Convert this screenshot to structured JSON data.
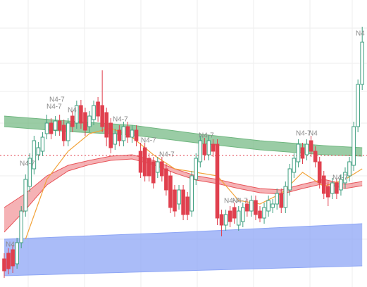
{
  "chart_data": {
    "type": "candlestick",
    "ylim": [
      0,
      408
    ],
    "grid": true,
    "up_color": "#3f9f80",
    "down_color": "#e0404e",
    "open": [
      40,
      48,
      53,
      33,
      63,
      108,
      143,
      168,
      188,
      193,
      218,
      233,
      223,
      236,
      230,
      208,
      243,
      233,
      258,
      248,
      228,
      238,
      263,
      258,
      248,
      233,
      203,
      223,
      208,
      228,
      213,
      223,
      193,
      198,
      183,
      178,
      163,
      178,
      168,
      158,
      138,
      118,
      138,
      128,
      108,
      153,
      178,
      203,
      188,
      203,
      203,
      103,
      88,
      108,
      113,
      88,
      93,
      118,
      108,
      123,
      108,
      98,
      108,
      113,
      118,
      133,
      113,
      138,
      163,
      178,
      198,
      188,
      208,
      193,
      178,
      158,
      143,
      133,
      148,
      138,
      148,
      158,
      173,
      228,
      288
    ],
    "high": [
      48,
      55,
      60,
      70,
      115,
      160,
      190,
      215,
      206,
      220,
      245,
      240,
      243,
      245,
      238,
      240,
      250,
      265,
      266,
      255,
      250,
      265,
      270,
      308,
      255,
      240,
      225,
      230,
      235,
      235,
      230,
      230,
      205,
      205,
      190,
      185,
      185,
      185,
      175,
      165,
      145,
      145,
      145,
      135,
      165,
      190,
      215,
      212,
      215,
      210,
      210,
      110,
      110,
      115,
      120,
      115,
      120,
      125,
      130,
      130,
      115,
      120,
      130,
      125,
      140,
      140,
      150,
      175,
      190,
      210,
      205,
      210,
      215,
      200,
      185,
      165,
      150,
      155,
      155,
      160,
      170,
      185,
      235,
      295,
      370
    ],
    "low": [
      13,
      18,
      20,
      26,
      55,
      100,
      135,
      160,
      180,
      186,
      210,
      210,
      215,
      215,
      200,
      200,
      220,
      225,
      225,
      215,
      220,
      230,
      235,
      220,
      200,
      190,
      195,
      200,
      200,
      205,
      205,
      200,
      155,
      150,
      150,
      140,
      155,
      150,
      130,
      105,
      100,
      110,
      95,
      95,
      100,
      145,
      170,
      180,
      180,
      185,
      88,
      72,
      80,
      85,
      90,
      80,
      85,
      100,
      100,
      95,
      92,
      90,
      100,
      105,
      110,
      105,
      105,
      130,
      155,
      170,
      175,
      180,
      185,
      170,
      140,
      125,
      115,
      125,
      125,
      130,
      140,
      150,
      165,
      220,
      280
    ],
    "close": [
      23,
      26,
      30,
      63,
      108,
      153,
      183,
      208,
      198,
      213,
      233,
      218,
      236,
      223,
      208,
      233,
      228,
      258,
      233,
      223,
      243,
      258,
      243,
      228,
      213,
      198,
      218,
      208,
      228,
      213,
      223,
      208,
      163,
      158,
      158,
      148,
      178,
      158,
      138,
      113,
      108,
      138,
      103,
      103,
      158,
      183,
      208,
      188,
      208,
      193,
      98,
      88,
      103,
      93,
      98,
      108,
      113,
      108,
      123,
      103,
      98,
      113,
      123,
      118,
      133,
      113,
      143,
      168,
      183,
      203,
      183,
      203,
      193,
      178,
      148,
      133,
      128,
      148,
      133,
      153,
      163,
      178,
      228,
      288,
      348
    ],
    "green_band": {
      "x": [
        0,
        15,
        30,
        45,
        60,
        75,
        84
      ],
      "upper": [
        243,
        236,
        230,
        218,
        208,
        201,
        198
      ],
      "lower": [
        228,
        221,
        216,
        205,
        195,
        188,
        186
      ],
      "color": "#6fb67f"
    },
    "blue_band": {
      "x": [
        0,
        42,
        84
      ],
      "upper": [
        68,
        78,
        90
      ],
      "lower": [
        16,
        23,
        30
      ],
      "color": "#8ea6f5"
    },
    "red_band": {
      "x": [
        0,
        5,
        10,
        15,
        20,
        25,
        30,
        35,
        40,
        45,
        50,
        55,
        60,
        65,
        70,
        75,
        80,
        84
      ],
      "upper": [
        113,
        133,
        158,
        173,
        180,
        186,
        188,
        180,
        168,
        158,
        153,
        146,
        140,
        138,
        146,
        153,
        146,
        150
      ],
      "lower": [
        78,
        110,
        145,
        165,
        174,
        180,
        182,
        174,
        162,
        152,
        147,
        140,
        134,
        132,
        140,
        147,
        140,
        144
      ],
      "color": "#e8555a"
    },
    "orange_line": {
      "x": [
        5,
        10,
        15,
        20,
        25,
        30,
        35,
        40,
        45,
        50,
        55,
        60,
        65,
        70,
        75,
        80,
        84
      ],
      "values": [
        68,
        153,
        193,
        218,
        226,
        213,
        188,
        168,
        163,
        158,
        123,
        118,
        133,
        163,
        143,
        153,
        168
      ],
      "color": "#f2a33a"
    },
    "ref_line": {
      "value": 187,
      "color": "#e0404e"
    },
    "annotations": [
      "N4-7",
      "N4-7",
      "N4-7",
      "N4",
      "N4-7",
      "N4-7",
      "N4-7",
      "N4-7",
      "N4-7",
      "N4",
      "N4-7",
      "N4-7",
      "N4-7",
      "N4",
      "N4"
    ]
  }
}
